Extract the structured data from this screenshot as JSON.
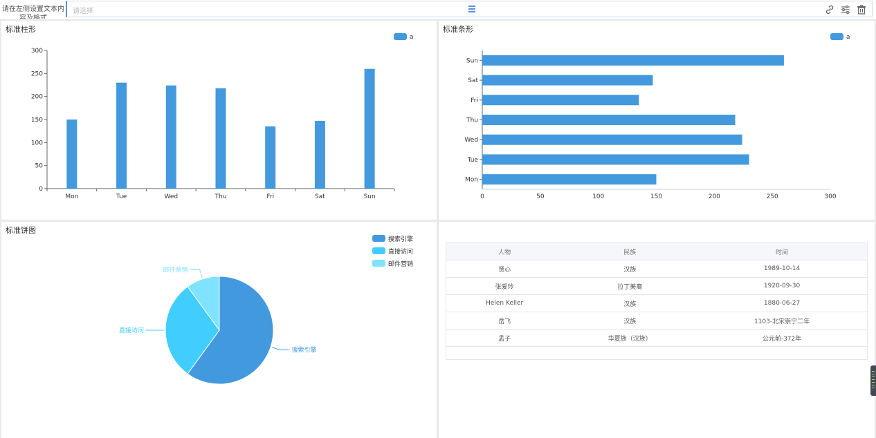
{
  "topbar": {
    "label": "请在左侧设置文本内容及格式",
    "select_placeholder": "请选择",
    "icons": [
      "link-icon",
      "sliders-icon",
      "trash-icon"
    ]
  },
  "panels": {
    "bar": {
      "title": "标准柱形"
    },
    "hbar": {
      "title": "标准条形"
    },
    "pie": {
      "title": "标准饼图"
    }
  },
  "chart_data": [
    {
      "type": "bar",
      "title": "标准柱形",
      "categories": [
        "Mon",
        "Tue",
        "Wed",
        "Thu",
        "Fri",
        "Sat",
        "Sun"
      ],
      "series": [
        {
          "name": "a",
          "values": [
            150,
            230,
            224,
            218,
            135,
            147,
            260
          ]
        }
      ],
      "ylim": [
        0,
        300
      ],
      "yticks": [
        0,
        50,
        100,
        150,
        200,
        250,
        300
      ],
      "legend": "top-right",
      "color": "#4399dd"
    },
    {
      "type": "bar",
      "orientation": "horizontal",
      "title": "标准条形",
      "categories": [
        "Mon",
        "Tue",
        "Wed",
        "Thu",
        "Fri",
        "Sat",
        "Sun"
      ],
      "series": [
        {
          "name": "a",
          "values": [
            150,
            230,
            224,
            218,
            135,
            147,
            260
          ]
        }
      ],
      "xlim": [
        0,
        300
      ],
      "xticks": [
        0,
        50,
        100,
        150,
        200,
        250,
        300
      ],
      "legend": "top-right",
      "color": "#4399dd"
    },
    {
      "type": "pie",
      "title": "标准饼图",
      "slices": [
        {
          "label": "搜索引擎",
          "value": 60,
          "color": "#4399dd"
        },
        {
          "label": "直接访问",
          "value": 30,
          "color": "#41ceff"
        },
        {
          "label": "邮件营销",
          "value": 10,
          "color": "#7fe2fe"
        }
      ],
      "legend": "top-right"
    }
  ],
  "table": {
    "headers": [
      "人物",
      "民族",
      "时间"
    ],
    "rows": [
      [
        "贤心",
        "汉族",
        "1989-10-14"
      ],
      [
        "张爱玲",
        "拉丁美裔",
        "1920-09-30"
      ],
      [
        "Helen Keller",
        "汉族",
        "1880-06-27"
      ],
      [
        "岳飞",
        "汉族",
        "1103-北宋崇宁二年"
      ],
      [
        "孟子",
        "华夏族（汉族）",
        "公元前-372年"
      ]
    ]
  }
}
